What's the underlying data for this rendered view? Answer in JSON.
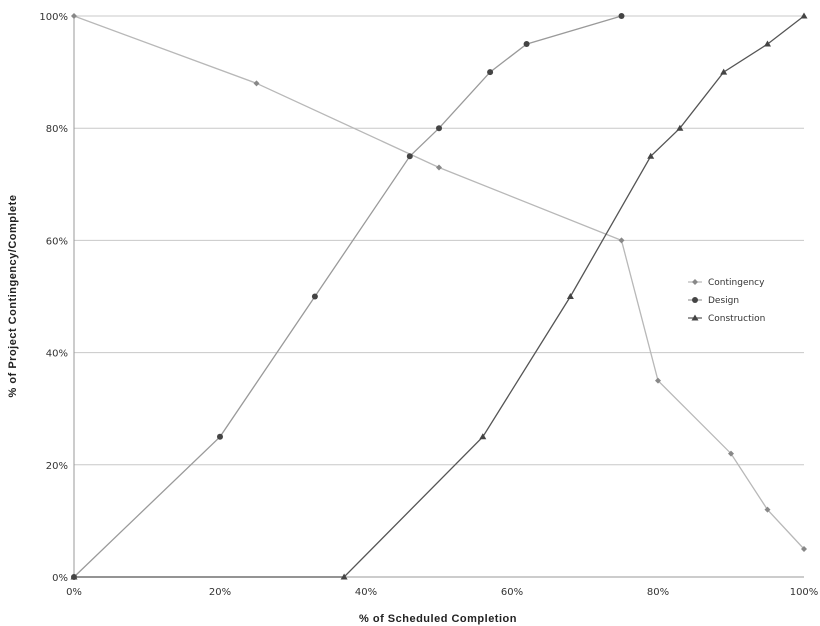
{
  "chart_data": {
    "type": "line",
    "xlabel": "% of Scheduled Completion",
    "ylabel": "% of Project Contingency/Complete",
    "xlim": [
      0,
      100
    ],
    "ylim": [
      0,
      100
    ],
    "x_ticks": [
      "0%",
      "20%",
      "40%",
      "60%",
      "80%",
      "100%"
    ],
    "y_ticks": [
      "0%",
      "20%",
      "40%",
      "60%",
      "80%",
      "100%"
    ],
    "grid": "horizontal",
    "legend_position": "right",
    "series": [
      {
        "name": "Contingency",
        "color": "#b8b8b8",
        "marker": "diamond",
        "points": [
          [
            0,
            100
          ],
          [
            25,
            88
          ],
          [
            50,
            73
          ],
          [
            75,
            60
          ],
          [
            80,
            35
          ],
          [
            90,
            22
          ],
          [
            95,
            12
          ],
          [
            100,
            5
          ]
        ]
      },
      {
        "name": "Design",
        "color": "#9a9a9a",
        "marker": "circle",
        "points": [
          [
            0,
            0
          ],
          [
            20,
            25
          ],
          [
            33,
            50
          ],
          [
            46,
            75
          ],
          [
            50,
            80
          ],
          [
            57,
            90
          ],
          [
            62,
            95
          ],
          [
            75,
            100
          ]
        ]
      },
      {
        "name": "Construction",
        "color": "#555555",
        "marker": "triangle",
        "points": [
          [
            0,
            0
          ],
          [
            37,
            0
          ],
          [
            56,
            25
          ],
          [
            68,
            50
          ],
          [
            79,
            75
          ],
          [
            83,
            80
          ],
          [
            89,
            90
          ],
          [
            95,
            95
          ],
          [
            100,
            100
          ]
        ]
      }
    ]
  }
}
